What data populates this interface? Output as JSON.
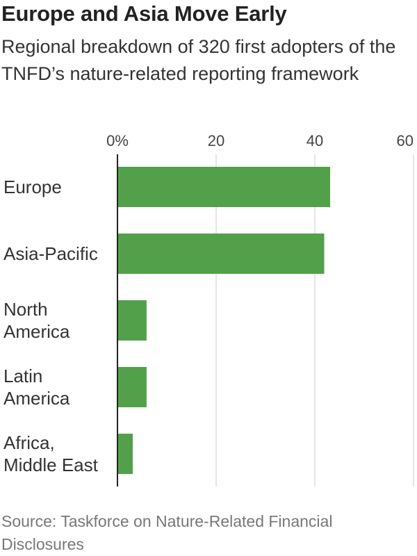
{
  "title": "Europe and Asia Move Early",
  "subtitle": "Regional breakdown of 320 first adopters of the TNFD’s nature-related reporting framework",
  "source": "Source: Taskforce on Nature-Related Financial Disclosures",
  "chart_data": {
    "type": "bar",
    "orientation": "horizontal",
    "categories": [
      [
        "Europe"
      ],
      [
        "Asia-Pacific"
      ],
      [
        "North",
        "America"
      ],
      [
        "Latin",
        "America"
      ],
      [
        "Africa,",
        "Middle East"
      ]
    ],
    "values": [
      43.1,
      41.9,
      5.9,
      5.9,
      3.1
    ],
    "xlim": [
      0,
      60
    ],
    "xticks": [
      0,
      20,
      40,
      60
    ],
    "xtick_labels": [
      "0%",
      "20",
      "40",
      "60"
    ],
    "grid": true,
    "colors": {
      "bar": "#52a04a",
      "grid": "#dddddd",
      "axis": "#222222"
    }
  }
}
